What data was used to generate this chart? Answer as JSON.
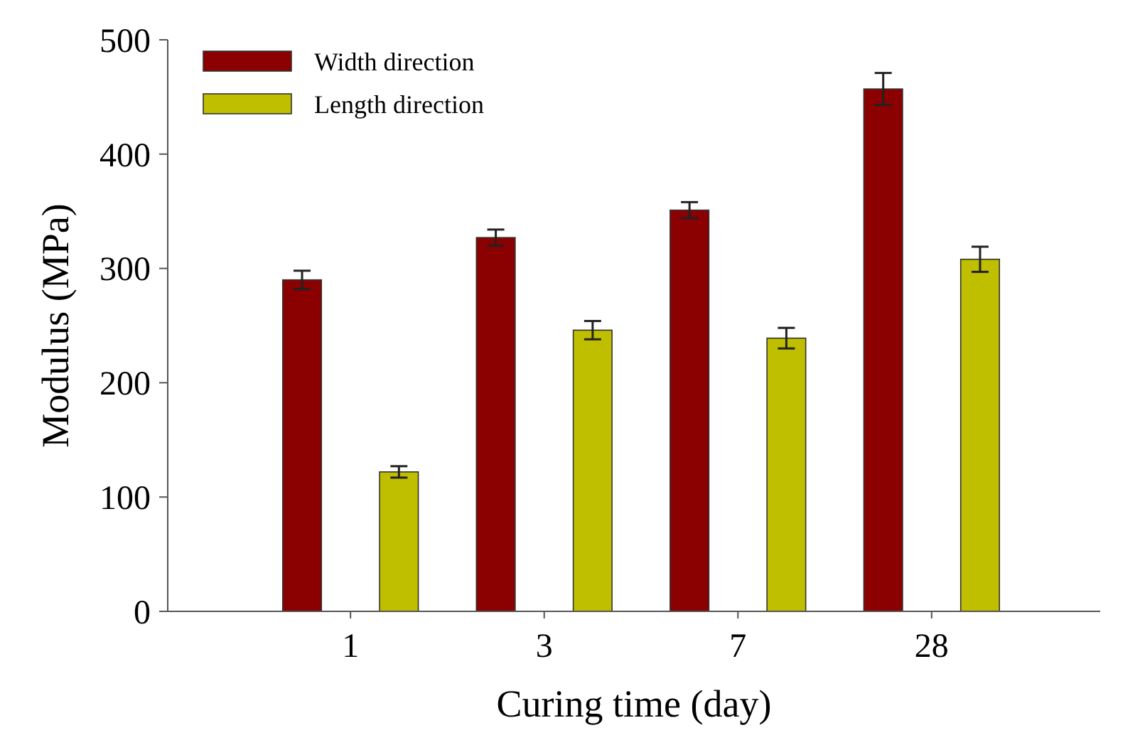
{
  "chart_data": {
    "type": "bar",
    "xlabel": "Curing time (day)",
    "ylabel": "Modulus (MPa)",
    "categories": [
      "1",
      "3",
      "7",
      "28"
    ],
    "series": [
      {
        "name": "Width direction",
        "color": "#8b0000",
        "values": [
          290,
          327,
          351,
          457
        ],
        "errors": [
          8,
          7,
          7,
          14
        ]
      },
      {
        "name": "Length direction",
        "color": "#bfbf00",
        "values": [
          122,
          246,
          239,
          308
        ],
        "errors": [
          5,
          8,
          9,
          11
        ]
      }
    ],
    "ylim": [
      0,
      500
    ],
    "yticks": [
      0,
      100,
      200,
      300,
      400,
      500
    ],
    "grid": false,
    "legend": "top left"
  }
}
